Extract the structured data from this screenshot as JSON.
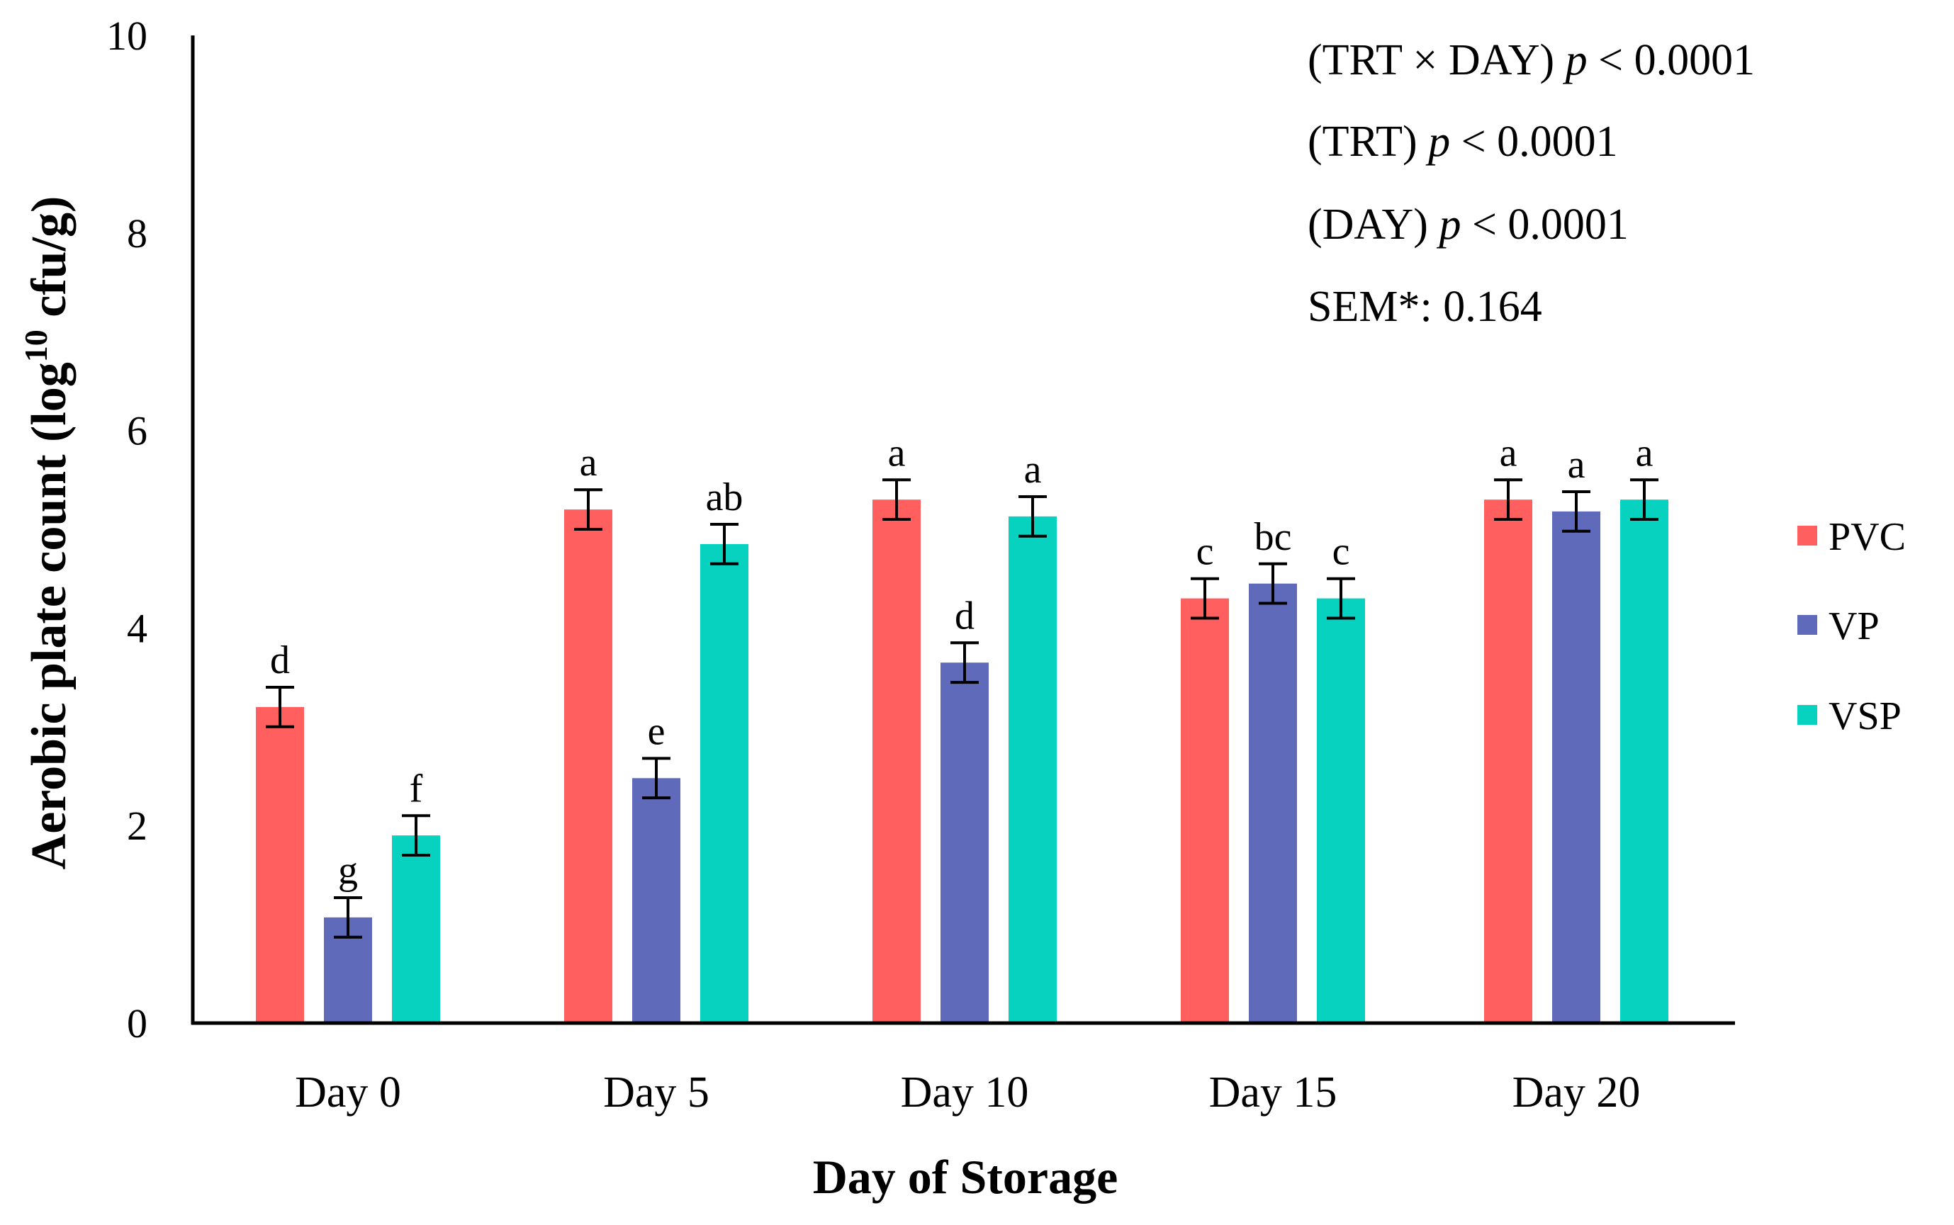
{
  "chart_data": {
    "type": "bar",
    "title": "",
    "xlabel": "Day of Storage",
    "ylabel": {
      "prefix": "Aerobic plate count (log",
      "superscript": "10",
      "suffix": " cfu/g)"
    },
    "ylim": [
      0,
      10
    ],
    "yticks": [
      "0",
      "2",
      "4",
      "6",
      "8",
      "10"
    ],
    "grid": false,
    "legend_position": "right",
    "categories": [
      "Day 0",
      "Day 5",
      "Day 10",
      "Day 15",
      "Day 20"
    ],
    "series": [
      {
        "name": "PVC",
        "color": "#FF5F5F",
        "values": [
          3.2,
          5.2,
          5.3,
          4.3,
          5.3
        ],
        "error": [
          0.2,
          0.2,
          0.2,
          0.2,
          0.2
        ],
        "letters": [
          "d",
          "a",
          "a",
          "c",
          "a"
        ]
      },
      {
        "name": "VP",
        "color": "#5F6ABA",
        "values": [
          1.07,
          2.48,
          3.65,
          4.45,
          5.18
        ],
        "error": [
          0.2,
          0.2,
          0.2,
          0.2,
          0.2
        ],
        "letters": [
          "g",
          "e",
          "d",
          "bc",
          "a"
        ]
      },
      {
        "name": "VSP",
        "color": "#07D2C0",
        "values": [
          1.9,
          4.85,
          5.13,
          4.3,
          5.3
        ],
        "error": [
          0.2,
          0.2,
          0.2,
          0.2,
          0.2
        ],
        "letters": [
          "f",
          "ab",
          "a",
          "c",
          "a"
        ]
      }
    ],
    "annotations": [
      {
        "label": "(TRT × DAY) ",
        "italic": "p",
        "value": " < 0.0001"
      },
      {
        "label": "(TRT)  ",
        "italic": "p",
        "value": " < 0.0001"
      },
      {
        "label": "(DAY) ",
        "italic": "p",
        "value": " < 0.0001"
      },
      {
        "label": "SEM*: 0.164",
        "italic": "",
        "value": ""
      }
    ]
  }
}
